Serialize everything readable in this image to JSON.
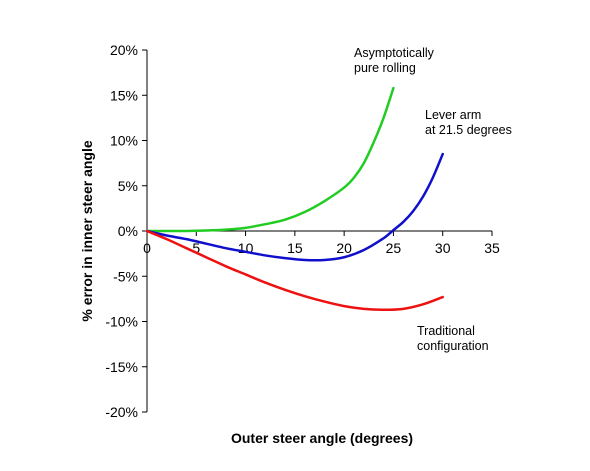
{
  "chart_data": {
    "type": "line",
    "xlabel": "Outer steer angle (degrees)",
    "ylabel": "% error in inner steer angle",
    "xlim": [
      0,
      35
    ],
    "ylim": [
      -20,
      20
    ],
    "x_ticks": [
      0,
      5,
      10,
      15,
      20,
      25,
      30,
      35
    ],
    "y_ticks": [
      -20,
      -15,
      -10,
      -5,
      0,
      5,
      10,
      15,
      20
    ],
    "x_tick_labels": [
      "0",
      "5",
      "10",
      "15",
      "20",
      "25",
      "30",
      "35"
    ],
    "y_tick_labels": [
      "-20%",
      "-15%",
      "-10%",
      "-5%",
      "0%",
      "5%",
      "10%",
      "15%",
      "20%"
    ],
    "grid": false,
    "legend": "none",
    "series": [
      {
        "color": "#22cc22",
        "x": [
          0,
          2,
          4,
          6,
          8,
          10,
          12,
          14,
          16,
          18,
          20,
          21,
          22,
          23,
          24,
          25
        ],
        "y": [
          0,
          0,
          0,
          0.05,
          0.15,
          0.35,
          0.75,
          1.25,
          2.1,
          3.3,
          4.8,
          5.9,
          7.5,
          9.8,
          12.5,
          15.8
        ]
      },
      {
        "color": "#1010cc",
        "x": [
          0,
          2,
          4,
          6,
          8,
          10,
          12,
          14,
          16,
          18,
          20,
          22,
          24,
          25,
          26,
          27,
          28,
          29,
          30
        ],
        "y": [
          0,
          -0.5,
          -0.9,
          -1.4,
          -1.9,
          -2.3,
          -2.7,
          -3.0,
          -3.2,
          -3.2,
          -2.9,
          -2.1,
          -0.8,
          0.1,
          1.0,
          2.2,
          3.8,
          5.9,
          8.5
        ]
      },
      {
        "color": "#ee1111",
        "x": [
          0,
          2,
          4,
          6,
          8,
          10,
          12,
          14,
          16,
          18,
          20,
          22,
          24,
          26,
          28,
          30
        ],
        "y": [
          0,
          -0.9,
          -1.9,
          -2.9,
          -3.9,
          -4.8,
          -5.7,
          -6.5,
          -7.2,
          -7.8,
          -8.3,
          -8.6,
          -8.7,
          -8.6,
          -8.1,
          -7.3
        ]
      }
    ],
    "annotations": [
      {
        "lines": [
          "Asymptotically",
          "pure rolling"
        ]
      },
      {
        "lines": [
          "Lever arm",
          "at 21.5 degrees"
        ]
      },
      {
        "lines": [
          "Traditional",
          "configuration"
        ]
      }
    ]
  }
}
